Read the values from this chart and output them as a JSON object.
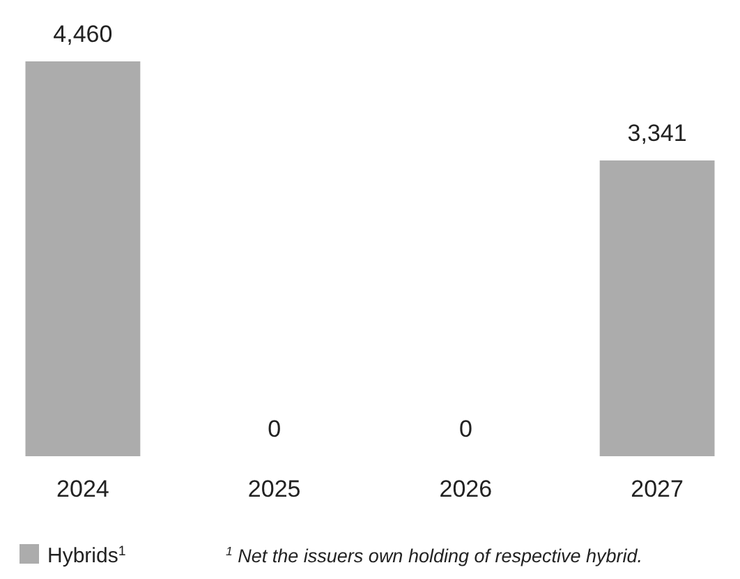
{
  "chart_data": {
    "type": "bar",
    "categories": [
      "2024",
      "2025",
      "2026",
      "2027"
    ],
    "series": [
      {
        "name": "Hybrids$^{1}$",
        "color": "#acacac",
        "values": [
          4460,
          0,
          0,
          3341
        ],
        "value_labels": [
          "4,460",
          "0",
          "0",
          "3,341"
        ]
      }
    ],
    "legend": "bottom left",
    "annotations": [
      "$^{1}$ Net the issuers own holding of respective hybrid."
    ]
  }
}
